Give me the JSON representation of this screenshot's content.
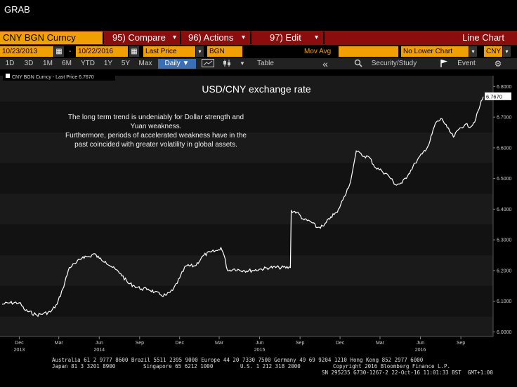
{
  "top_label": "GRAB",
  "header": {
    "security": "CNY BGN Curncy",
    "compare": "95) Compare",
    "actions": "96) Actions",
    "edit": "97) Edit",
    "chart_type": "Line Chart",
    "compare_arrow": "▾",
    "actions_arrow": "▾",
    "edit_arrow": "▾"
  },
  "controls": {
    "start_date": "10/23/2013",
    "end_date": "10/22/2016",
    "field": "Last Price",
    "source": "BGN",
    "mov_avg": "Mov Avg",
    "lower_chart": "No Lower Chart",
    "currency": "CNY",
    "calendar_icon": "▦",
    "dash": "-"
  },
  "periods": [
    "1D",
    "3D",
    "1M",
    "6M",
    "YTD",
    "1Y",
    "5Y",
    "Max"
  ],
  "frequency": "Daily ▼",
  "toolbar": {
    "table": "Table",
    "back": "«",
    "security_study": "Security/Study",
    "event": "Event",
    "settings": "⚙"
  },
  "chart_data": {
    "type": "line",
    "title": "USD/CNY exchange rate",
    "legend": "CNY BGN Curncy - Last Price 6.7670",
    "last_value_label": "6.7670",
    "annotation": [
      "The long term trend is undeniably for Dollar strength and",
      "Yuan weakness.",
      "Furthermore, periods of accelerated weakness have in the",
      "past coincided with greater volatility in global assets."
    ],
    "ylim": [
      5.985,
      6.835
    ],
    "y_ticks": [
      "6.0000",
      "6.1000",
      "6.2000",
      "6.3000",
      "6.4000",
      "6.5000",
      "6.6000",
      "6.7000",
      "6.8000"
    ],
    "x_ticks": [
      {
        "label": "Dec",
        "year": "2013",
        "x": "2013-12-01"
      },
      {
        "label": "Mar",
        "year": "",
        "x": "2014-03-01"
      },
      {
        "label": "Jun",
        "year": "2014",
        "x": "2014-06-01"
      },
      {
        "label": "Sep",
        "year": "",
        "x": "2014-09-01"
      },
      {
        "label": "Dec",
        "year": "",
        "x": "2014-12-01"
      },
      {
        "label": "Mar",
        "year": "",
        "x": "2015-03-01"
      },
      {
        "label": "Jun",
        "year": "2015",
        "x": "2015-06-01"
      },
      {
        "label": "Sep",
        "year": "",
        "x": "2015-09-01"
      },
      {
        "label": "Dec",
        "year": "",
        "x": "2015-12-01"
      },
      {
        "label": "Mar",
        "year": "",
        "x": "2016-03-01"
      },
      {
        "label": "Jun",
        "year": "2016",
        "x": "2016-06-01"
      },
      {
        "label": "Sep",
        "year": "",
        "x": "2016-09-01"
      }
    ],
    "series": [
      {
        "points": [
          [
            "2013-10-23",
            6.09
          ],
          [
            "2013-11-10",
            6.095
          ],
          [
            "2013-12-01",
            6.095
          ],
          [
            "2013-12-15",
            6.07
          ],
          [
            "2014-01-10",
            6.055
          ],
          [
            "2014-01-25",
            6.06
          ],
          [
            "2014-02-10",
            6.065
          ],
          [
            "2014-02-25",
            6.09
          ],
          [
            "2014-03-10",
            6.14
          ],
          [
            "2014-03-25",
            6.21
          ],
          [
            "2014-04-10",
            6.225
          ],
          [
            "2014-04-25",
            6.245
          ],
          [
            "2014-05-10",
            6.245
          ],
          [
            "2014-05-20",
            6.255
          ],
          [
            "2014-06-01",
            6.24
          ],
          [
            "2014-06-15",
            6.23
          ],
          [
            "2014-07-01",
            6.21
          ],
          [
            "2014-07-20",
            6.19
          ],
          [
            "2014-08-05",
            6.16
          ],
          [
            "2014-08-20",
            6.15
          ],
          [
            "2014-09-05",
            6.14
          ],
          [
            "2014-09-20",
            6.14
          ],
          [
            "2014-10-05",
            6.13
          ],
          [
            "2014-10-20",
            6.12
          ],
          [
            "2014-11-01",
            6.12
          ],
          [
            "2014-11-15",
            6.135
          ],
          [
            "2014-12-01",
            6.175
          ],
          [
            "2014-12-15",
            6.215
          ],
          [
            "2015-01-05",
            6.215
          ],
          [
            "2015-01-25",
            6.25
          ],
          [
            "2015-02-10",
            6.26
          ],
          [
            "2015-02-25",
            6.265
          ],
          [
            "2015-03-05",
            6.275
          ],
          [
            "2015-03-12",
            6.25
          ],
          [
            "2015-03-20",
            6.2
          ],
          [
            "2015-04-05",
            6.205
          ],
          [
            "2015-04-25",
            6.2
          ],
          [
            "2015-05-15",
            6.2
          ],
          [
            "2015-06-05",
            6.205
          ],
          [
            "2015-06-25",
            6.21
          ],
          [
            "2015-07-15",
            6.21
          ],
          [
            "2015-08-10",
            6.21
          ],
          [
            "2015-08-12",
            6.395
          ],
          [
            "2015-08-25",
            6.39
          ],
          [
            "2015-09-10",
            6.365
          ],
          [
            "2015-09-25",
            6.36
          ],
          [
            "2015-10-10",
            6.34
          ],
          [
            "2015-10-25",
            6.345
          ],
          [
            "2015-11-10",
            6.375
          ],
          [
            "2015-11-25",
            6.39
          ],
          [
            "2015-12-10",
            6.44
          ],
          [
            "2015-12-25",
            6.49
          ],
          [
            "2016-01-07",
            6.59
          ],
          [
            "2016-01-20",
            6.575
          ],
          [
            "2016-02-05",
            6.57
          ],
          [
            "2016-02-20",
            6.535
          ],
          [
            "2016-03-05",
            6.525
          ],
          [
            "2016-03-20",
            6.51
          ],
          [
            "2016-04-05",
            6.48
          ],
          [
            "2016-04-20",
            6.485
          ],
          [
            "2016-05-05",
            6.515
          ],
          [
            "2016-05-20",
            6.55
          ],
          [
            "2016-06-05",
            6.58
          ],
          [
            "2016-06-20",
            6.61
          ],
          [
            "2016-07-05",
            6.68
          ],
          [
            "2016-07-20",
            6.695
          ],
          [
            "2016-08-01",
            6.665
          ],
          [
            "2016-08-15",
            6.635
          ],
          [
            "2016-08-30",
            6.665
          ],
          [
            "2016-09-10",
            6.675
          ],
          [
            "2016-09-25",
            6.67
          ],
          [
            "2016-10-05",
            6.695
          ],
          [
            "2016-10-15",
            6.74
          ],
          [
            "2016-10-22",
            6.767
          ]
        ]
      }
    ]
  },
  "footer": {
    "line1": "Australia 61 2 9777 8600 Brazil 5511 2395 9000 Europe 44 20 7330 7500 Germany 49 69 9204 1210 Hong Kong 852 2977 6000",
    "line2a": "Japan 81 3 3201 8900",
    "line2b": "Singapore 65 6212 1000",
    "line2c": "U.S. 1 212 318 2000",
    "line2d": "Copyright 2016 Bloomberg Finance L.P.",
    "line3": "SN 295235 G730-1267-2 22-Oct-16 11:01:33 BST  GMT+1:00"
  }
}
